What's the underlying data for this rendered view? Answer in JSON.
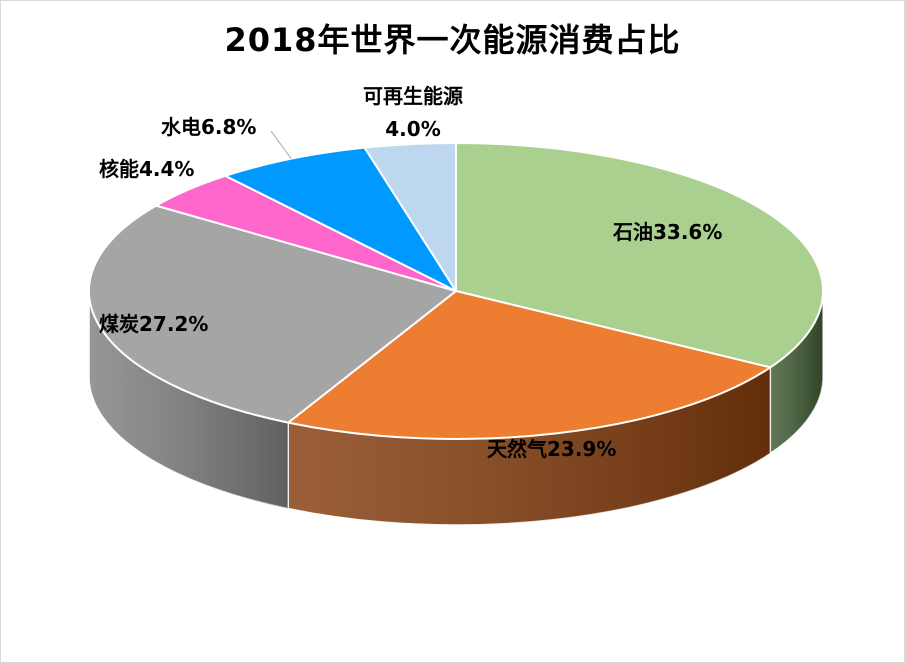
{
  "chart_data": {
    "type": "pie",
    "title": "2018年世界一次能源消费占比",
    "categories": [
      "石油",
      "天然气",
      "煤炭",
      "核能",
      "水电",
      "可再生能源"
    ],
    "values": [
      33.6,
      23.9,
      27.2,
      4.4,
      6.8,
      4.0
    ],
    "unit": "%",
    "colors": [
      "#a9d08e",
      "#ed7d31",
      "#a5a5a5",
      "#ff66cc",
      "#0099ff",
      "#bdd7ee"
    ],
    "side_colors": [
      "#3e5a31",
      "#843c0c",
      "#7f7f7f",
      "#b03590",
      "#005a99",
      "#8fa8c0"
    ],
    "data_labels": [
      "石油33.6%",
      "天然气23.9%",
      "煤炭27.2%",
      "核能4.4%",
      "水电6.8%",
      "可再生能源4.0%"
    ],
    "label_parts": {
      "renewable_name": "可再生能源",
      "renewable_value": "4.0%"
    },
    "style": "3d-pie",
    "legend": "none"
  }
}
